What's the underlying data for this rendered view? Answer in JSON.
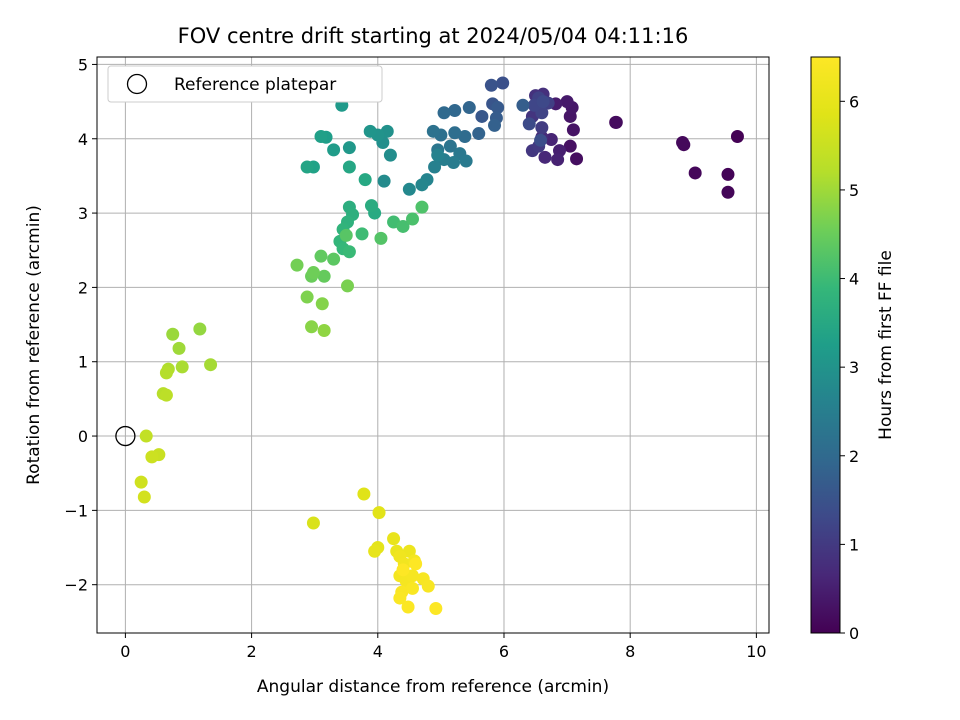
{
  "chart_data": {
    "type": "scatter",
    "title": "FOV centre drift starting at 2024/05/04 04:11:16",
    "xlabel": "Angular distance from reference (arcmin)",
    "ylabel": "Rotation from reference (arcmin)",
    "xlim": [
      -0.45,
      10.2
    ],
    "ylim": [
      -2.65,
      5.1
    ],
    "x_ticks": [
      0,
      2,
      4,
      6,
      8,
      10
    ],
    "y_ticks": [
      -2,
      -1,
      0,
      1,
      2,
      3,
      4,
      5
    ],
    "grid": true,
    "legend": {
      "placement": "upper-left",
      "entries": [
        "Reference platepar"
      ]
    },
    "reference": {
      "name": "Reference platepar",
      "x": 0,
      "y": 0,
      "marker": "hollow-circle"
    },
    "colorbar": {
      "label": "Hours from first FF file",
      "colormap": "viridis",
      "range": [
        0,
        6.5
      ],
      "ticks": [
        0,
        1,
        2,
        3,
        4,
        5,
        6
      ]
    },
    "points": [
      [
        9.7,
        4.03,
        0.02
      ],
      [
        9.55,
        3.52,
        0.05
      ],
      [
        9.55,
        3.28,
        0.08
      ],
      [
        9.03,
        3.54,
        0.1
      ],
      [
        8.85,
        3.92,
        0.12
      ],
      [
        8.83,
        3.95,
        0.13
      ],
      [
        7.77,
        4.22,
        0.15
      ],
      [
        7.78,
        4.22,
        0.18
      ],
      [
        7.15,
        3.73,
        0.22
      ],
      [
        7.05,
        3.9,
        0.25
      ],
      [
        7.1,
        4.12,
        0.3
      ],
      [
        7.05,
        4.3,
        0.33
      ],
      [
        7.08,
        4.42,
        0.36
      ],
      [
        7.0,
        4.5,
        0.4
      ],
      [
        6.82,
        4.47,
        0.45
      ],
      [
        6.88,
        3.84,
        0.5
      ],
      [
        6.85,
        3.72,
        0.55
      ],
      [
        6.75,
        3.99,
        0.6
      ],
      [
        6.65,
        3.75,
        0.65
      ],
      [
        6.6,
        4.02,
        0.7
      ],
      [
        6.55,
        4.42,
        0.75
      ],
      [
        6.62,
        4.6,
        0.8
      ],
      [
        6.5,
        4.58,
        0.85
      ],
      [
        6.45,
        4.3,
        0.9
      ],
      [
        6.45,
        3.84,
        0.95
      ],
      [
        6.55,
        3.9,
        1.0
      ],
      [
        6.6,
        4.15,
        1.05
      ],
      [
        6.7,
        4.48,
        1.1
      ],
      [
        6.55,
        4.55,
        1.15
      ],
      [
        6.6,
        4.35,
        1.2
      ],
      [
        6.48,
        4.45,
        1.25
      ],
      [
        6.62,
        4.5,
        1.3
      ],
      [
        6.4,
        4.2,
        1.35
      ],
      [
        6.58,
        3.98,
        1.4
      ],
      [
        5.98,
        4.75,
        1.45
      ],
      [
        5.8,
        4.72,
        1.5
      ],
      [
        5.82,
        4.47,
        1.55
      ],
      [
        5.65,
        4.3,
        1.6
      ],
      [
        5.9,
        4.42,
        1.65
      ],
      [
        5.88,
        4.28,
        1.7
      ],
      [
        6.3,
        4.45,
        1.75
      ],
      [
        5.85,
        4.18,
        1.8
      ],
      [
        5.6,
        4.07,
        1.85
      ],
      [
        5.45,
        4.42,
        1.9
      ],
      [
        5.22,
        4.38,
        1.95
      ],
      [
        5.05,
        4.35,
        2.0
      ],
      [
        5.38,
        4.03,
        2.05
      ],
      [
        5.22,
        4.08,
        2.1
      ],
      [
        5.0,
        4.05,
        2.15
      ],
      [
        4.88,
        4.1,
        2.2
      ],
      [
        5.15,
        3.9,
        2.25
      ],
      [
        4.95,
        3.85,
        2.3
      ],
      [
        5.3,
        3.8,
        2.35
      ],
      [
        5.4,
        3.7,
        2.4
      ],
      [
        5.2,
        3.68,
        2.45
      ],
      [
        5.05,
        3.72,
        2.5
      ],
      [
        4.9,
        3.62,
        2.55
      ],
      [
        4.95,
        3.78,
        2.6
      ],
      [
        4.78,
        3.45,
        2.65
      ],
      [
        4.7,
        3.38,
        2.7
      ],
      [
        4.5,
        3.32,
        2.75
      ],
      [
        4.1,
        3.43,
        2.8
      ],
      [
        4.2,
        3.78,
        2.85
      ],
      [
        4.08,
        3.95,
        2.9
      ],
      [
        4.15,
        4.1,
        2.95
      ],
      [
        4.0,
        4.05,
        3.0
      ],
      [
        3.88,
        4.1,
        3.05
      ],
      [
        3.55,
        3.88,
        3.1
      ],
      [
        3.43,
        4.45,
        3.15
      ],
      [
        3.3,
        3.85,
        3.2
      ],
      [
        3.18,
        4.02,
        3.25
      ],
      [
        3.1,
        4.03,
        3.3
      ],
      [
        2.98,
        3.62,
        3.35
      ],
      [
        2.88,
        3.62,
        3.4
      ],
      [
        3.55,
        3.62,
        3.45
      ],
      [
        3.8,
        3.45,
        3.5
      ],
      [
        3.95,
        3.0,
        3.55
      ],
      [
        3.9,
        3.1,
        3.6
      ],
      [
        3.55,
        3.08,
        3.65
      ],
      [
        3.6,
        2.98,
        3.7
      ],
      [
        3.52,
        2.88,
        3.75
      ],
      [
        3.45,
        2.78,
        3.8
      ],
      [
        3.4,
        2.62,
        3.85
      ],
      [
        3.45,
        2.52,
        3.9
      ],
      [
        3.55,
        2.48,
        3.95
      ],
      [
        3.75,
        2.72,
        4.0
      ],
      [
        4.25,
        2.88,
        4.05
      ],
      [
        4.4,
        2.82,
        4.1
      ],
      [
        4.55,
        2.92,
        4.15
      ],
      [
        4.7,
        3.08,
        4.2
      ],
      [
        4.05,
        2.66,
        4.25
      ],
      [
        3.5,
        2.7,
        4.3
      ],
      [
        3.3,
        2.38,
        4.35
      ],
      [
        3.1,
        2.42,
        4.4
      ],
      [
        3.15,
        2.15,
        4.45
      ],
      [
        2.95,
        2.15,
        4.5
      ],
      [
        2.98,
        2.2,
        4.55
      ],
      [
        2.72,
        2.3,
        4.6
      ],
      [
        3.52,
        2.02,
        4.65
      ],
      [
        2.88,
        1.87,
        4.7
      ],
      [
        3.12,
        1.78,
        4.75
      ],
      [
        2.95,
        1.47,
        4.8
      ],
      [
        3.15,
        1.42,
        4.85
      ],
      [
        1.18,
        1.44,
        4.9
      ],
      [
        0.75,
        1.37,
        4.95
      ],
      [
        0.85,
        1.18,
        5.0
      ],
      [
        1.35,
        0.96,
        5.05
      ],
      [
        0.9,
        0.93,
        5.1
      ],
      [
        0.68,
        0.9,
        5.15
      ],
      [
        0.65,
        0.85,
        5.2
      ],
      [
        0.6,
        0.57,
        5.25
      ],
      [
        0.65,
        0.55,
        5.3
      ],
      [
        0.33,
        0.0,
        5.4
      ],
      [
        0.53,
        -0.25,
        5.5
      ],
      [
        0.42,
        -0.28,
        5.55
      ],
      [
        0.25,
        -0.62,
        5.6
      ],
      [
        0.3,
        -0.82,
        5.65
      ],
      [
        2.98,
        -1.17,
        5.75
      ],
      [
        3.78,
        -0.78,
        5.85
      ],
      [
        4.02,
        -1.03,
        5.9
      ],
      [
        4.0,
        -1.5,
        5.95
      ],
      [
        3.95,
        -1.55,
        6.0
      ],
      [
        4.25,
        -1.38,
        6.05
      ],
      [
        4.3,
        -1.55,
        6.1
      ],
      [
        4.5,
        -1.55,
        6.15
      ],
      [
        4.35,
        -1.62,
        6.2
      ],
      [
        4.42,
        -1.72,
        6.25
      ],
      [
        4.58,
        -1.68,
        6.28
      ],
      [
        4.35,
        -1.88,
        6.3
      ],
      [
        4.45,
        -1.95,
        6.32
      ],
      [
        4.55,
        -1.88,
        6.34
      ],
      [
        4.72,
        -1.92,
        6.36
      ],
      [
        4.8,
        -2.02,
        6.38
      ],
      [
        4.38,
        -2.1,
        6.4
      ],
      [
        4.55,
        -2.05,
        6.42
      ],
      [
        4.35,
        -2.18,
        6.44
      ],
      [
        4.48,
        -2.3,
        6.46
      ],
      [
        4.92,
        -2.32,
        6.48
      ],
      [
        4.6,
        -1.72,
        6.5
      ],
      [
        4.4,
        -1.8,
        6.5
      ]
    ]
  }
}
